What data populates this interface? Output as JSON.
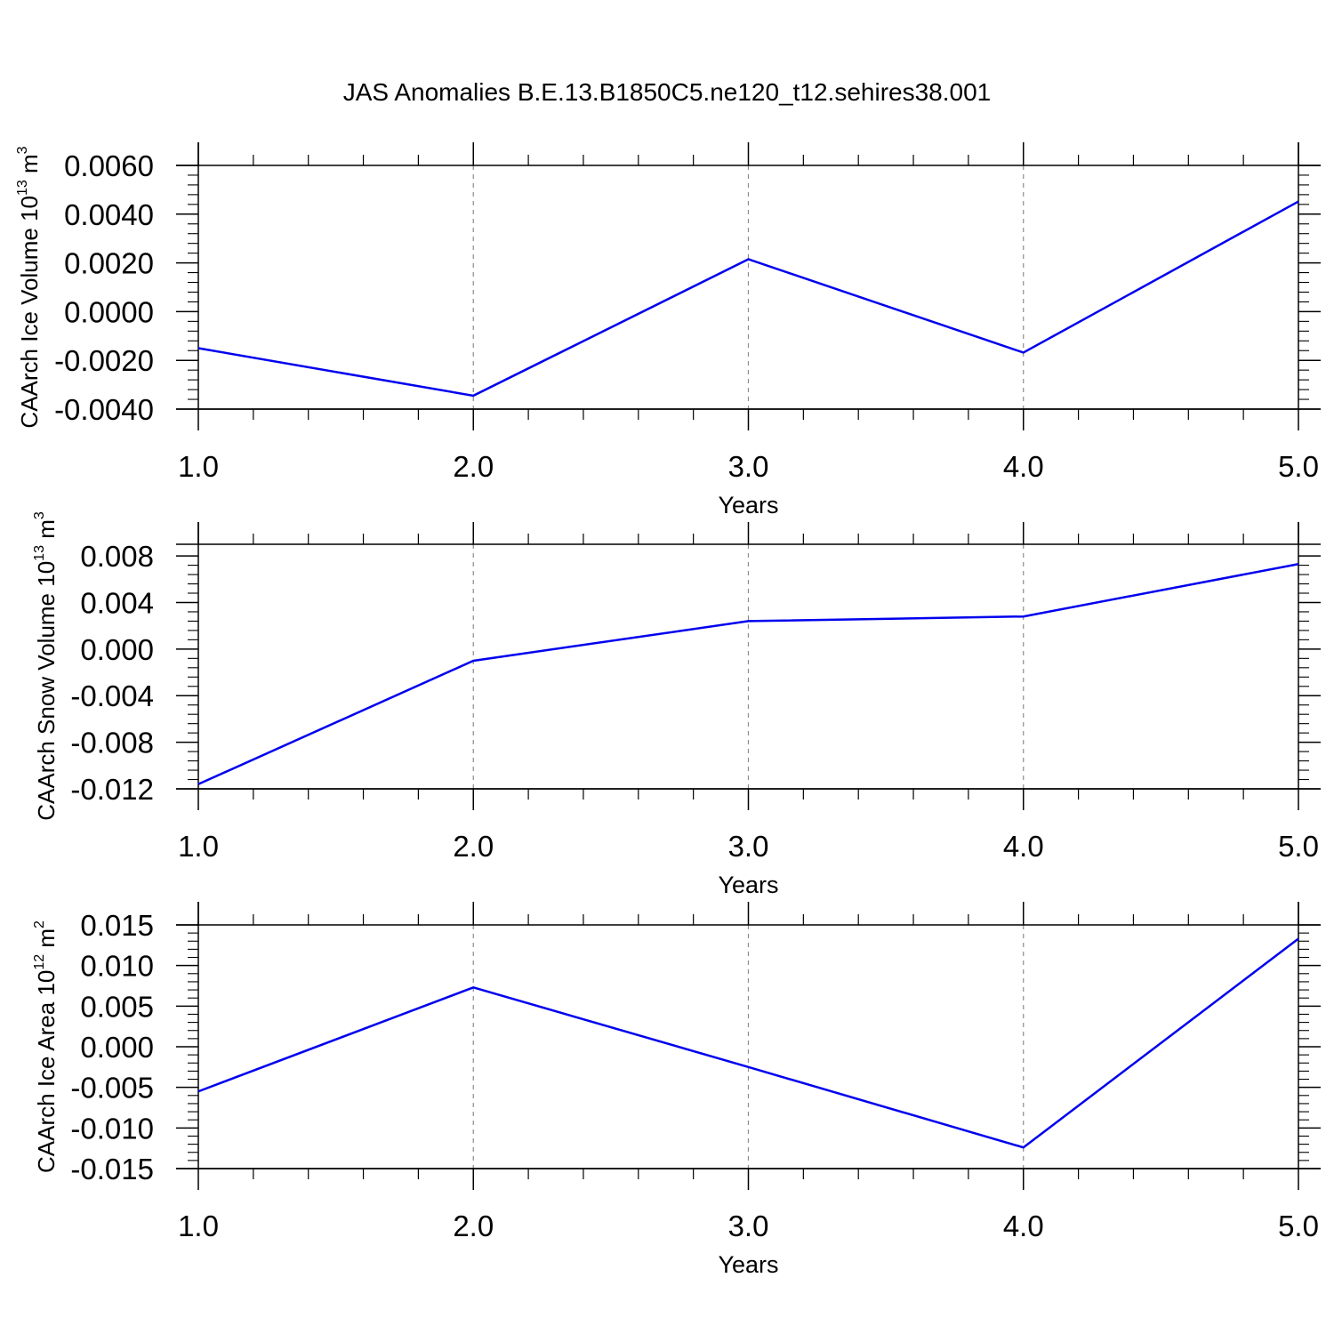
{
  "title": "JAS Anomalies B.E.13.B1850C5.ne120_t12.sehires38.001",
  "colors": {
    "line": "#0000ee",
    "axis": "#000000",
    "grid": "#8c8c8c"
  },
  "chart_data": [
    {
      "type": "line",
      "ylabel": {
        "text": "CAArch Ice Volume 10",
        "sup1": "13",
        "mid": " m",
        "sup2": "3"
      },
      "xlabel": "Years",
      "xlim": [
        1.0,
        5.0
      ],
      "ylim": [
        -0.004,
        0.006
      ],
      "xticks": [
        1.0,
        2.0,
        3.0,
        4.0,
        5.0
      ],
      "xtick_labels": [
        "1.0",
        "2.0",
        "3.0",
        "4.0",
        "5.0"
      ],
      "yticks": [
        -0.004,
        -0.002,
        0.0,
        0.002,
        0.004,
        0.006
      ],
      "ytick_labels": [
        "-0.0040",
        "-0.0020",
        "0.0000",
        "0.0020",
        "0.0040",
        "0.0060"
      ],
      "grid": "vertical-dashed",
      "x": [
        1.0,
        2.0,
        3.0,
        4.0,
        5.0
      ],
      "values": [
        -0.0015,
        -0.00345,
        0.00215,
        -0.00168,
        0.00452
      ]
    },
    {
      "type": "line",
      "ylabel": {
        "text": "CAArch Snow Volume 10",
        "sup1": "13",
        "mid": " m",
        "sup2": "3"
      },
      "xlabel": "Years",
      "xlim": [
        1.0,
        5.0
      ],
      "ylim": [
        -0.012,
        0.009
      ],
      "xticks": [
        1.0,
        2.0,
        3.0,
        4.0,
        5.0
      ],
      "xtick_labels": [
        "1.0",
        "2.0",
        "3.0",
        "4.0",
        "5.0"
      ],
      "yticks": [
        -0.012,
        -0.008,
        -0.004,
        0.0,
        0.004,
        0.008
      ],
      "ytick_labels": [
        "-0.012",
        "-0.008",
        "-0.004",
        "0.000",
        "0.004",
        "0.008"
      ],
      "grid": "vertical-dashed",
      "x": [
        1.0,
        2.0,
        3.0,
        4.0,
        5.0
      ],
      "values": [
        -0.0116,
        -0.001,
        0.0024,
        0.0028,
        0.0073
      ]
    },
    {
      "type": "line",
      "ylabel": {
        "text": "CAArch Ice Area 10",
        "sup1": "12",
        "mid": " m",
        "sup2": "2"
      },
      "xlabel": "Years",
      "xlim": [
        1.0,
        5.0
      ],
      "ylim": [
        -0.015,
        0.015
      ],
      "xticks": [
        1.0,
        2.0,
        3.0,
        4.0,
        5.0
      ],
      "xtick_labels": [
        "1.0",
        "2.0",
        "3.0",
        "4.0",
        "5.0"
      ],
      "yticks": [
        -0.015,
        -0.01,
        -0.005,
        0.0,
        0.005,
        0.01,
        0.015
      ],
      "ytick_labels": [
        "-0.015",
        "-0.010",
        "-0.005",
        "0.000",
        "0.005",
        "0.010",
        "0.015"
      ],
      "grid": "vertical-dashed",
      "x": [
        1.0,
        2.0,
        3.0,
        4.0,
        5.0
      ],
      "values": [
        -0.0055,
        0.0073,
        -0.0025,
        -0.0124,
        0.0133
      ]
    }
  ]
}
